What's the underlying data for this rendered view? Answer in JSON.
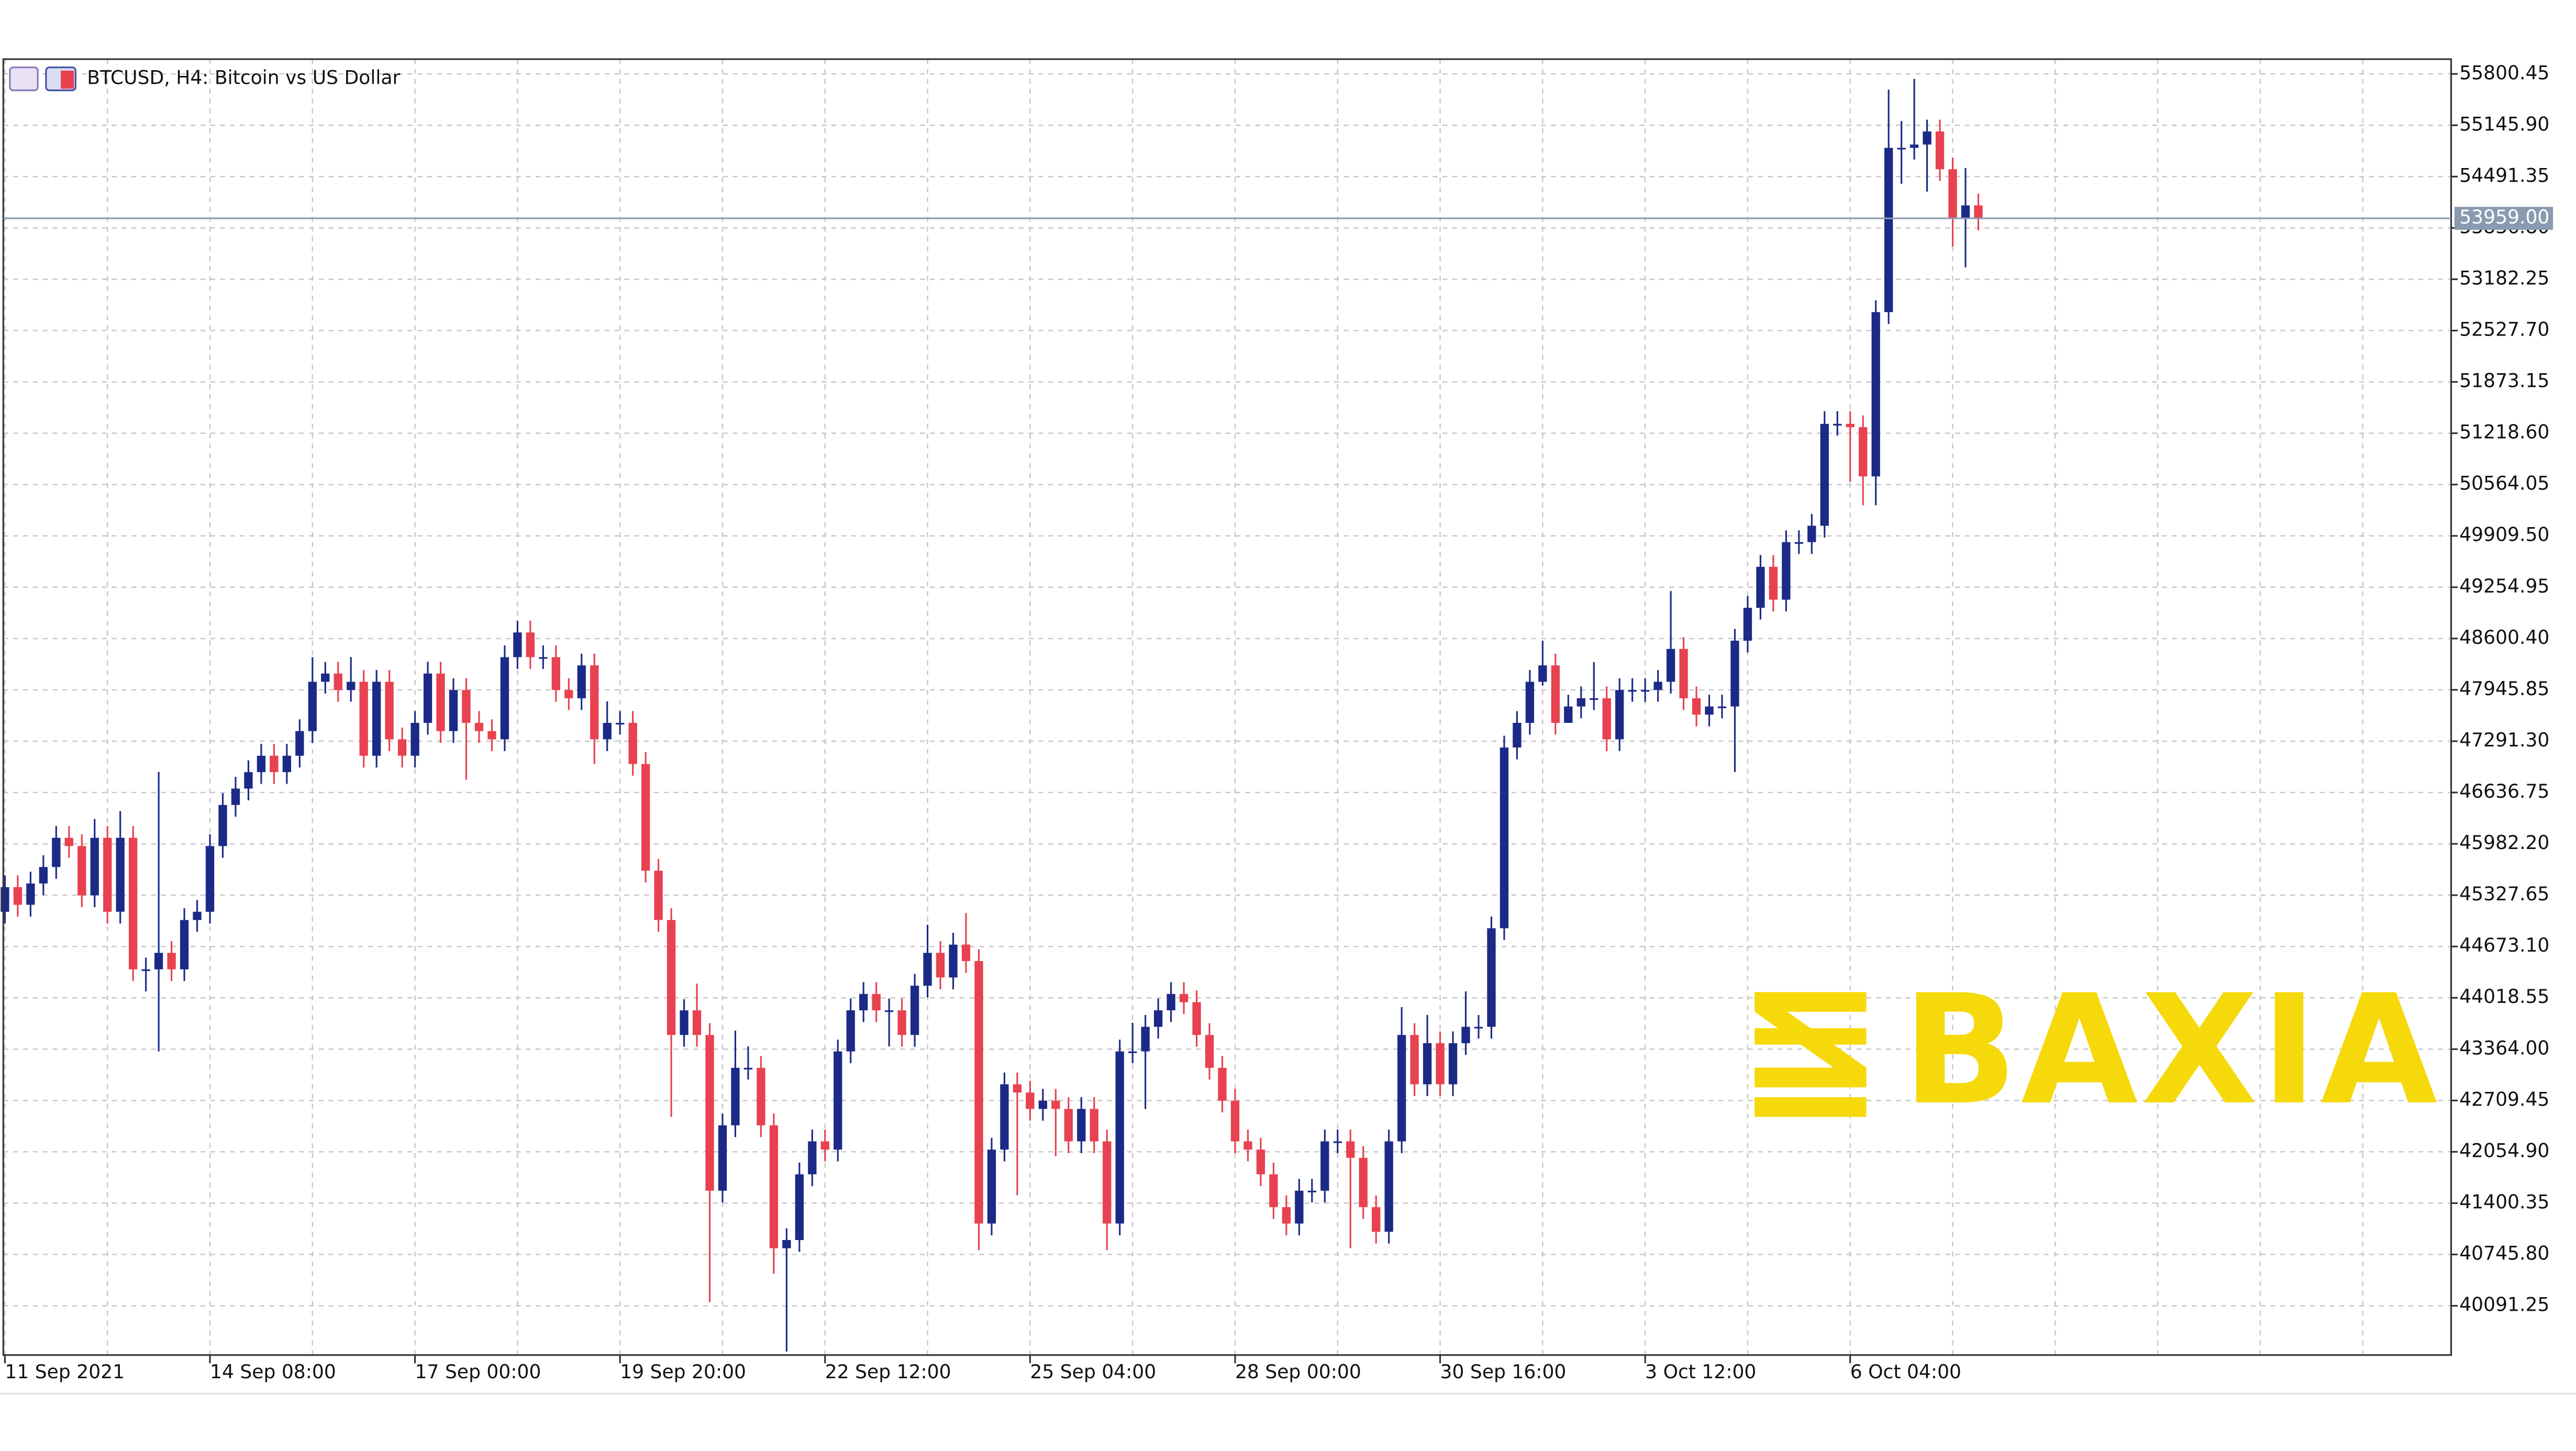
{
  "chart_data": {
    "type": "candlestick",
    "title": "BTCUSD, H4:  Bitcoin vs US Dollar",
    "watermark": "BAXIA",
    "up_color": "#1c2a87",
    "down_color": "#e8414f",
    "grid": true,
    "ylim": [
      39463,
      55989
    ],
    "yticks": [
      {
        "value": 40091.25,
        "label": "40091.25"
      },
      {
        "value": 40745.8,
        "label": "40745.80"
      },
      {
        "value": 41400.35,
        "label": "41400.35"
      },
      {
        "value": 42054.9,
        "label": "42054.90"
      },
      {
        "value": 42709.45,
        "label": "42709.45"
      },
      {
        "value": 43364,
        "label": "43364.00"
      },
      {
        "value": 44018.55,
        "label": "44018.55"
      },
      {
        "value": 44673.1,
        "label": "44673.10"
      },
      {
        "value": 45327.65,
        "label": "45327.65"
      },
      {
        "value": 45982.2,
        "label": "45982.20"
      },
      {
        "value": 46636.75,
        "label": "46636.75"
      },
      {
        "value": 47291.3,
        "label": "47291.30"
      },
      {
        "value": 47945.85,
        "label": "47945.85"
      },
      {
        "value": 48600.4,
        "label": "48600.40"
      },
      {
        "value": 49254.95,
        "label": "49254.95"
      },
      {
        "value": 49909.5,
        "label": "49909.50"
      },
      {
        "value": 50564.05,
        "label": "50564.05"
      },
      {
        "value": 51218.6,
        "label": "51218.60"
      },
      {
        "value": 51873.15,
        "label": "51873.15"
      },
      {
        "value": 52527.7,
        "label": "52527.70"
      },
      {
        "value": 53182.25,
        "label": "53182.25"
      },
      {
        "value": 53836.8,
        "label": "53836.80"
      },
      {
        "value": 54491.35,
        "label": "54491.35"
      },
      {
        "value": 55145.9,
        "label": "55145.90"
      },
      {
        "value": 55800.45,
        "label": "55800.45"
      }
    ],
    "current_price": {
      "value": 53959,
      "label": "53959.00"
    },
    "categories": [
      "11 Sep 2021",
      null,
      null,
      null,
      null,
      null,
      null,
      null,
      null,
      null,
      null,
      null,
      null,
      null,
      null,
      null,
      "14 Sep 08:00",
      null,
      null,
      null,
      null,
      null,
      null,
      null,
      null,
      null,
      null,
      null,
      null,
      null,
      null,
      null,
      "17 Sep 00:00",
      null,
      null,
      null,
      null,
      null,
      null,
      null,
      null,
      null,
      null,
      null,
      null,
      null,
      null,
      null,
      "19 Sep 20:00",
      null,
      null,
      null,
      null,
      null,
      null,
      null,
      null,
      null,
      null,
      null,
      null,
      null,
      null,
      null,
      "22 Sep 12:00",
      null,
      null,
      null,
      null,
      null,
      null,
      null,
      null,
      null,
      null,
      null,
      null,
      null,
      null,
      null,
      "25 Sep 04:00",
      null,
      null,
      null,
      null,
      null,
      null,
      null,
      null,
      null,
      null,
      null,
      null,
      null,
      null,
      null,
      "28 Sep 00:00",
      null,
      null,
      null,
      null,
      null,
      null,
      null,
      null,
      null,
      null,
      null,
      null,
      null,
      null,
      null,
      "30 Sep 16:00",
      null,
      null,
      null,
      null,
      null,
      null,
      null,
      null,
      null,
      null,
      null,
      null,
      null,
      null,
      null,
      "3 Oct 12:00",
      null,
      null,
      null,
      null,
      null,
      null,
      null,
      null,
      null,
      null,
      null,
      null,
      null,
      null,
      null,
      "6 Oct 04:00",
      null,
      null,
      null,
      null,
      null,
      null,
      null,
      null,
      null,
      null
    ],
    "open": [
      45116,
      45430,
      45205,
      45477,
      45687,
      46059,
      45954,
      45325,
      46059,
      45116,
      46059,
      44382,
      44382,
      44592,
      44382,
      45011,
      45116,
      45954,
      46478,
      46687,
      46897,
      47106,
      46897,
      47106,
      47420,
      48049,
      48154,
      47944,
      48049,
      47106,
      48049,
      47315,
      47106,
      47525,
      48154,
      47420,
      47944,
      47525,
      47420,
      47315,
      48363,
      48678,
      48363,
      48363,
      47944,
      47839,
      48258,
      47315,
      47525,
      47525,
      47001,
      45640,
      45011,
      43545,
      43859,
      43545,
      41559,
      42393,
      43126,
      43126,
      42393,
      40825,
      40930,
      41768,
      42188,
      42083,
      43335,
      43859,
      44068,
      43859,
      43859,
      43545,
      44173,
      44592,
      44278,
      44697,
      44487,
      41140,
      42083,
      42916,
      42811,
      42602,
      42707,
      42602,
      42188,
      42602,
      42188,
      41140,
      43335,
      43335,
      43649,
      43859,
      44068,
      43963,
      43545,
      43126,
      42707,
      42188,
      42083,
      41768,
      41349,
      41140,
      41559,
      41559,
      42188,
      42188,
      41978,
      41349,
      41035,
      42188,
      43545,
      42916,
      43440,
      42916,
      43440,
      43649,
      43649,
      44906,
      47211,
      47525,
      48049,
      48258,
      47525,
      47734,
      47839,
      47839,
      47315,
      47944,
      47944,
      47944,
      48049,
      48468,
      47839,
      47630,
      47734,
      47734,
      48573,
      48992,
      49515,
      49096,
      49830,
      49830,
      50039,
      51338,
      51338,
      51296,
      50668,
      52763,
      54858,
      54858,
      54900,
      55067,
      54585,
      53957,
      54124
    ],
    "high": [
      45580,
      45580,
      45627,
      45837,
      46209,
      46209,
      46104,
      46300,
      46209,
      46400,
      46209,
      44532,
      46900,
      44742,
      45161,
      45266,
      46104,
      46628,
      46837,
      47047,
      47256,
      47256,
      47256,
      47570,
      48363,
      48300,
      48304,
      48363,
      48199,
      48199,
      48199,
      47465,
      47675,
      48304,
      48304,
      48094,
      48094,
      47675,
      47570,
      48513,
      48828,
      48828,
      48513,
      48513,
      48094,
      48408,
      48408,
      47800,
      47675,
      47675,
      47151,
      45790,
      45161,
      44000,
      44200,
      43695,
      42543,
      43600,
      43400,
      43276,
      42543,
      41080,
      41918,
      42338,
      42338,
      43485,
      44009,
      44218,
      44218,
      44009,
      44009,
      44323,
      44950,
      44742,
      44847,
      45100,
      44637,
      42233,
      43066,
      43066,
      42961,
      42857,
      42857,
      42752,
      42752,
      42752,
      42338,
      43485,
      43700,
      43799,
      44009,
      44218,
      44218,
      44113,
      43695,
      43276,
      42857,
      42338,
      42233,
      41918,
      41499,
      41709,
      41709,
      42338,
      42338,
      42338,
      42128,
      41499,
      42338,
      43900,
      43695,
      43800,
      43590,
      43590,
      44100,
      43799,
      45056,
      47361,
      47675,
      48199,
      48573,
      48408,
      47884,
      47989,
      48300,
      47989,
      48094,
      48094,
      48094,
      48199,
      49207,
      48618,
      47989,
      47884,
      47884,
      48723,
      49142,
      49665,
      49665,
      49980,
      49980,
      50189,
      51500,
      51500,
      51500,
      51446,
      52913,
      55600,
      55200,
      55737,
      55217,
      55217,
      54735,
      54600,
      54274
    ],
    "low": [
      44966,
      45055,
      45055,
      45327,
      45537,
      45804,
      45175,
      45175,
      44966,
      44966,
      44232,
      44100,
      43335,
      44232,
      44232,
      44861,
      44966,
      45804,
      46328,
      46537,
      46747,
      46747,
      46747,
      46956,
      47270,
      47899,
      47794,
      47794,
      46956,
      46956,
      47165,
      46956,
      46956,
      47375,
      47270,
      47270,
      46800,
      47270,
      47165,
      47165,
      48213,
      48213,
      48213,
      47794,
      47689,
      47689,
      47000,
      47165,
      47375,
      46851,
      45490,
      44861,
      42500,
      43395,
      43395,
      40138,
      41409,
      42243,
      42976,
      42243,
      40500,
      39508,
      40780,
      41618,
      41933,
      41933,
      43185,
      43709,
      43709,
      43400,
      43395,
      43395,
      44023,
      44128,
      44128,
      44337,
      40800,
      40990,
      41933,
      41500,
      42452,
      42452,
      42000,
      42038,
      42038,
      42038,
      40800,
      40990,
      43185,
      42600,
      43499,
      43709,
      43813,
      43395,
      42976,
      42557,
      42038,
      41933,
      41618,
      41199,
      40990,
      40990,
      41409,
      41409,
      42038,
      40825,
      41199,
      40885,
      40885,
      42038,
      42766,
      42766,
      42766,
      42766,
      43290,
      43499,
      43499,
      44756,
      47061,
      47375,
      48000,
      47375,
      47584,
      47584,
      47689,
      47165,
      47165,
      47794,
      47794,
      47794,
      47899,
      47689,
      47480,
      47480,
      47584,
      46897,
      48423,
      48842,
      48946,
      48946,
      49680,
      49680,
      49889,
      51188,
      50600,
      50300,
      50300,
      52613,
      54400,
      54708,
      54300,
      54435,
      53600,
      53334,
      53807
    ],
    "close": [
      45430,
      45205,
      45477,
      45687,
      46059,
      45954,
      45325,
      46059,
      45116,
      46059,
      44382,
      44382,
      44592,
      44382,
      45011,
      45116,
      45954,
      46478,
      46687,
      46897,
      47106,
      46897,
      47106,
      47420,
      48049,
      48154,
      47944,
      48049,
      47106,
      48049,
      47315,
      47106,
      47525,
      48154,
      47420,
      47944,
      47525,
      47420,
      47315,
      48363,
      48678,
      48363,
      48363,
      47944,
      47839,
      48258,
      47315,
      47525,
      47525,
      47001,
      45640,
      45011,
      43545,
      43859,
      43545,
      41559,
      42393,
      43126,
      43126,
      42393,
      40825,
      40930,
      41768,
      42188,
      42083,
      43335,
      43859,
      44068,
      43859,
      43859,
      43545,
      44173,
      44592,
      44278,
      44697,
      44487,
      41140,
      42083,
      42916,
      42811,
      42602,
      42707,
      42602,
      42188,
      42602,
      42188,
      41140,
      43335,
      43335,
      43649,
      43859,
      44068,
      43963,
      43545,
      43126,
      42707,
      42188,
      42083,
      41768,
      41349,
      41140,
      41559,
      41559,
      42188,
      42188,
      41978,
      41349,
      41035,
      42188,
      43545,
      42916,
      43440,
      42916,
      43440,
      43649,
      43649,
      44906,
      47211,
      47525,
      48049,
      48258,
      47525,
      47734,
      47839,
      47839,
      47315,
      47944,
      47944,
      47944,
      48049,
      48468,
      47839,
      47630,
      47734,
      47734,
      48573,
      48992,
      49515,
      49096,
      49830,
      49830,
      50039,
      51338,
      51338,
      51296,
      50668,
      52763,
      54858,
      54858,
      54900,
      55067,
      54585,
      53957,
      54124,
      53957
    ]
  }
}
